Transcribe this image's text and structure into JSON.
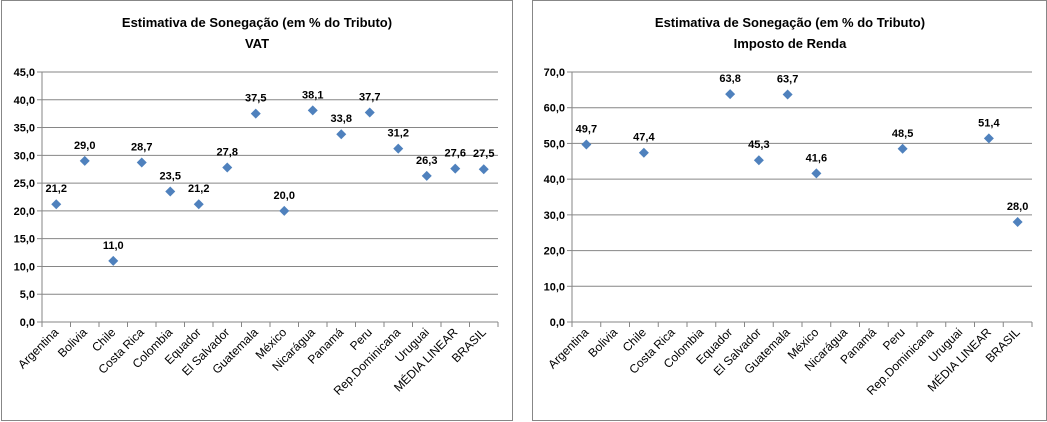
{
  "colors": {
    "marker": "#4F81BD",
    "grid": "#868686",
    "axis": "#868686"
  },
  "chart_data": [
    {
      "type": "scatter",
      "title": "Estimativa de Sonegação (em % do Tributo)",
      "subtitle": "VAT",
      "categories": [
        "Argentina",
        "Bolivia",
        "Chile",
        "Costa Rica",
        "Colombia",
        "Equador",
        "El Salvador",
        "Guatemala",
        "México",
        "Nicarágua",
        "Panamá",
        "Peru",
        "Rep.Dominicana",
        "Uruguai",
        "MÉDIA LINEAR",
        "BRASIL"
      ],
      "values": [
        21.2,
        29.0,
        11.0,
        28.7,
        23.5,
        21.2,
        27.8,
        37.5,
        20.0,
        38.1,
        33.8,
        37.7,
        31.2,
        26.3,
        27.6,
        27.5
      ],
      "data_labels": [
        "21,2",
        "29,0",
        "11,0",
        "28,7",
        "23,5",
        "21,2",
        "27,8",
        "37,5",
        "20,0",
        "38,1",
        "33,8",
        "37,7",
        "31,2",
        "26,3",
        "27,6",
        "27,5"
      ],
      "ylim": [
        0,
        45
      ],
      "yticks": [
        "0,0",
        "5,0",
        "10,0",
        "15,0",
        "20,0",
        "25,0",
        "30,0",
        "35,0",
        "40,0",
        "45,0"
      ],
      "grid": true,
      "legend": "none"
    },
    {
      "type": "scatter",
      "title": "Estimativa de Sonegação (em % do Tributo)",
      "subtitle": "Imposto de Renda",
      "categories": [
        "Argentina",
        "Bolivia",
        "Chile",
        "Costa Rica",
        "Colombia",
        "Equador",
        "El Salvador",
        "Guatemala",
        "México",
        "Nicarágua",
        "Panamá",
        "Peru",
        "Rep.Dominicana",
        "Uruguai",
        "MÉDIA LINEAR",
        "BRASIL"
      ],
      "values": [
        49.7,
        null,
        47.4,
        null,
        null,
        63.8,
        45.3,
        63.7,
        41.6,
        null,
        null,
        48.5,
        null,
        null,
        51.4,
        28.0
      ],
      "data_labels": [
        "49,7",
        "",
        "47,4",
        "",
        "",
        "63,8",
        "45,3",
        "63,7",
        "41,6",
        "",
        "",
        "48,5",
        "",
        "",
        "51,4",
        "28,0"
      ],
      "ylim": [
        0,
        70
      ],
      "yticks": [
        "0,0",
        "10,0",
        "20,0",
        "30,0",
        "40,0",
        "50,0",
        "60,0",
        "70,0"
      ],
      "grid": true,
      "legend": "none"
    }
  ]
}
